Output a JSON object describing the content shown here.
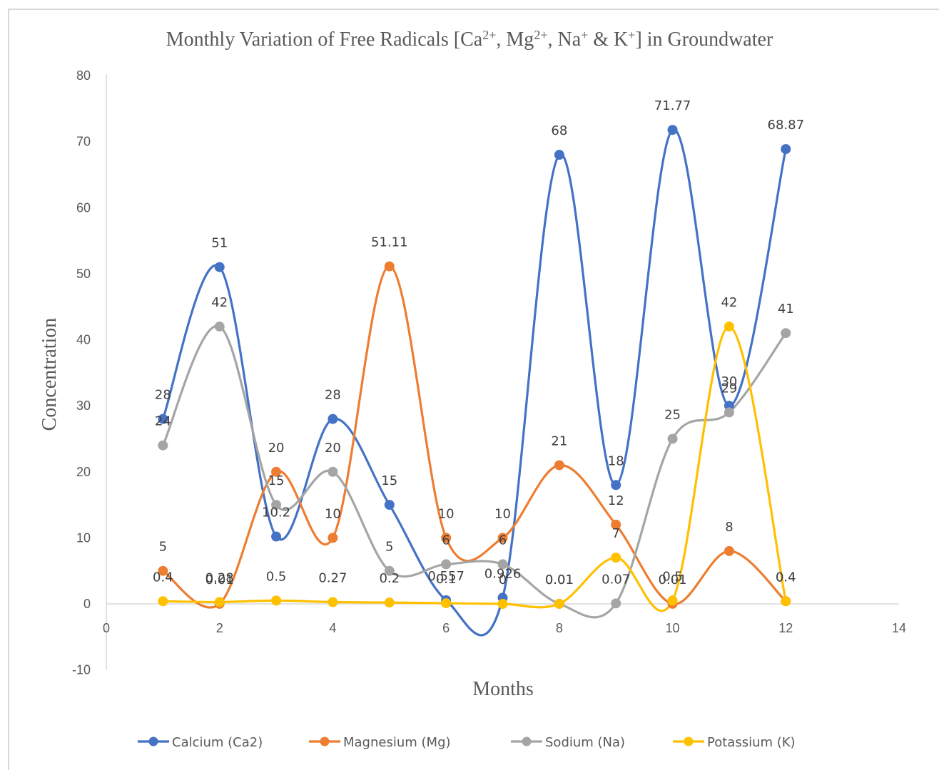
{
  "chart_data": {
    "type": "scatter",
    "subtype": "smooth-line-with-markers",
    "title": "Monthly Variation of Free Radicals [Ca2+, Mg2+, Na+ & K+] in Groundwater",
    "title_parts": {
      "pre": "Monthly Variation of Free Radicals [Ca",
      "ca_sup": "2+",
      "mid1": ", Mg",
      "mg_sup": "2+",
      "mid2": ", Na",
      "na_sup": "+",
      "mid3": " & K",
      "k_sup": "+",
      "post": "] in Groundwater"
    },
    "xlabel": "Months",
    "ylabel": "Concentration",
    "xlim": [
      0,
      14
    ],
    "ylim": [
      -10,
      80
    ],
    "xticks": [
      0,
      2,
      4,
      6,
      8,
      10,
      12,
      14
    ],
    "yticks": [
      -10,
      0,
      10,
      20,
      30,
      40,
      50,
      60,
      70,
      80
    ],
    "grid": false,
    "legend_position": "bottom",
    "x": [
      1,
      2,
      3,
      4,
      5,
      6,
      7,
      8,
      9,
      10,
      11,
      12
    ],
    "series": [
      {
        "name": "Calcium (Ca2)",
        "color": "#4472c4",
        "values": [
          28,
          51,
          10.2,
          28,
          15,
          0.557,
          0.926,
          68,
          18,
          71.77,
          30,
          68.87
        ]
      },
      {
        "name": "Magnesium (Mg)",
        "color": "#ed7d31",
        "values": [
          5,
          0.01,
          20,
          10,
          51.11,
          10,
          10,
          21,
          12,
          0.01,
          8,
          0.4
        ]
      },
      {
        "name": "Sodium (Na)",
        "color": "#a5a5a5",
        "values": [
          24,
          42,
          15,
          20,
          5,
          6,
          6,
          0.01,
          0.07,
          25,
          29,
          41
        ]
      },
      {
        "name": "Potassium (K)",
        "color": "#ffc000",
        "values": [
          0.4,
          0.28,
          0.5,
          0.27,
          0.2,
          0.1,
          0,
          0.01,
          7,
          0.5,
          42,
          0.4
        ]
      }
    ]
  }
}
